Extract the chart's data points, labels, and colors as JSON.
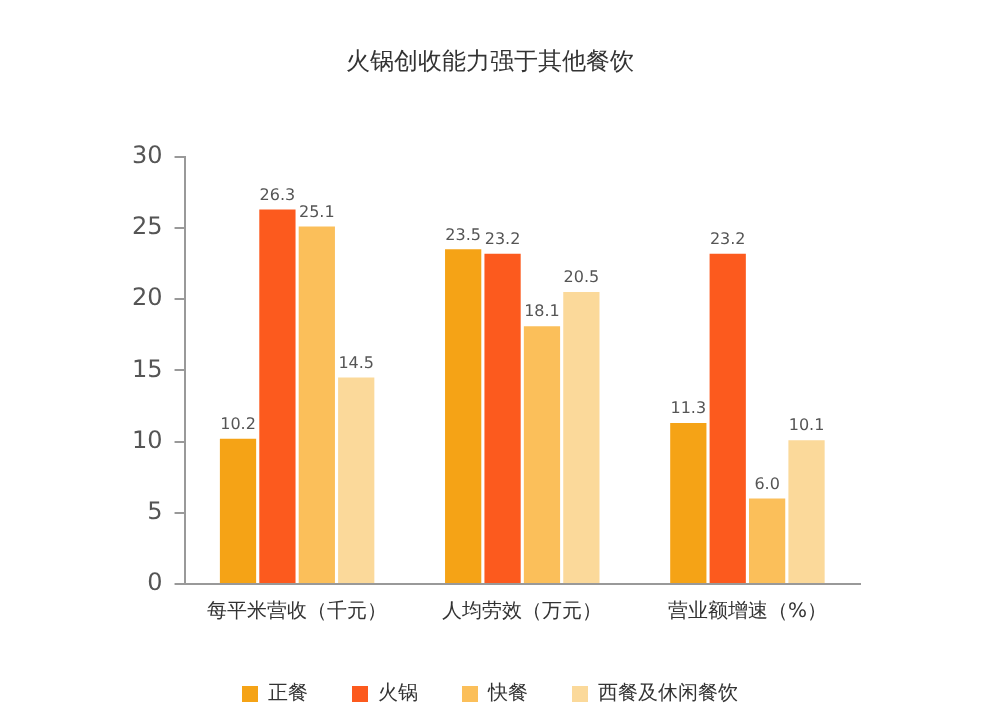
{
  "chart_data": {
    "type": "bar",
    "title": "火锅创收能力强于其他餐饮",
    "categories": [
      "每平米营收（千元）",
      "人均劳效（万元）",
      "营业额增速（%）"
    ],
    "series": [
      {
        "name": "正餐",
        "color": "#f5a316",
        "values": [
          10.2,
          23.5,
          11.3
        ],
        "value_labels": [
          "10.2",
          "23.5",
          "11.3"
        ]
      },
      {
        "name": "火锅",
        "color": "#fc5a1e",
        "values": [
          26.3,
          23.2,
          23.2
        ],
        "value_labels": [
          "26.3",
          "23.2",
          "23.2"
        ]
      },
      {
        "name": "快餐",
        "color": "#fbbf5a",
        "values": [
          25.1,
          18.1,
          6.0
        ],
        "value_labels": [
          "25.1",
          "18.1",
          "6.0"
        ]
      },
      {
        "name": "西餐及休闲餐饮",
        "color": "#fbd99a",
        "values": [
          14.5,
          20.5,
          10.1
        ],
        "value_labels": [
          "14.5",
          "20.5",
          "10.1"
        ]
      }
    ],
    "ylim": [
      0,
      30
    ],
    "yticks": [
      0,
      5,
      10,
      15,
      20,
      25,
      30
    ],
    "grid": false,
    "legend": "bottom"
  }
}
